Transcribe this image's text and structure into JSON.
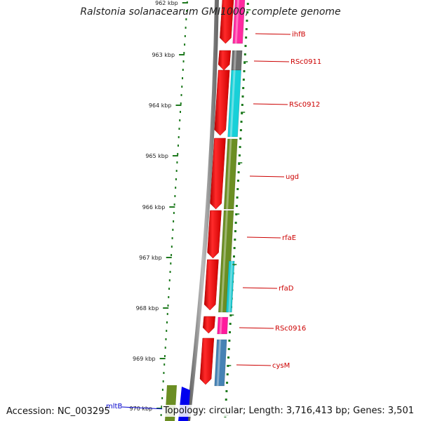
{
  "title": "Ralstonia solanacearum GMI1000, complete genome",
  "footer": {
    "accession": "Accession: NC_003295",
    "topology": "Topology: circular; Length: 3,716,413 bp; Genes: 3,501"
  },
  "ticks": [
    "962 kbp",
    "963 kbp",
    "964 kbp",
    "965 kbp",
    "966 kbp",
    "967 kbp",
    "968 kbp",
    "969 kbp",
    "970 kbp"
  ],
  "genes": [
    {
      "name": "ihfB",
      "color": "#ff2aa0"
    },
    {
      "name": "RSc0911",
      "color": "#6e6e6e"
    },
    {
      "name": "RSc0912",
      "color": "#18d0d8"
    },
    {
      "name": "ugd",
      "color": "#6b8e23"
    },
    {
      "name": "rfaE",
      "color": "#6b8e23"
    },
    {
      "name": "rfaD",
      "color": "#18c8d0"
    },
    {
      "name": "RSc0916",
      "color": "#ff1a9c"
    },
    {
      "name": "cysM",
      "color": "#4682b4"
    },
    {
      "name": "mltB",
      "color": "#0000ee"
    }
  ],
  "colors": {
    "cds": "#ff0000",
    "backbone": "#808080",
    "tick": "#1f7a1f",
    "label_red": "#cc0000",
    "label_blue": "#0000cc"
  }
}
